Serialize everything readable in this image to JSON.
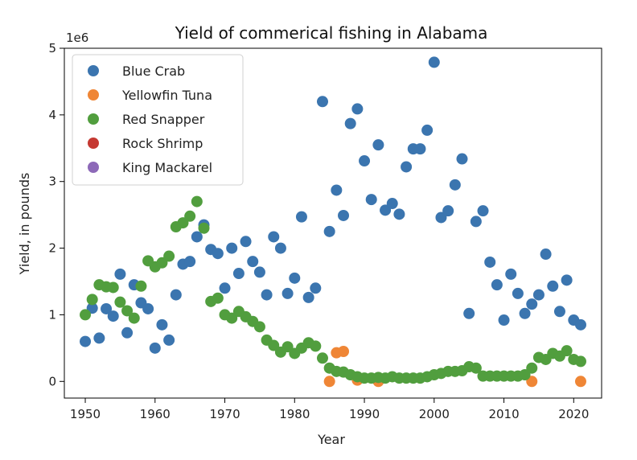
{
  "chart_data": {
    "type": "scatter",
    "title": "Yield of commerical fishing in Alabama",
    "xlabel": "Year",
    "ylabel": "Yield, in pounds",
    "y_offset_label": "1e6",
    "xlim": [
      1947,
      2024
    ],
    "ylim": [
      -0.25,
      5.0
    ],
    "x_ticks": [
      1950,
      1960,
      1970,
      1980,
      1990,
      2000,
      2010,
      2020
    ],
    "y_ticks": [
      0,
      1,
      2,
      3,
      4,
      5
    ],
    "grid": false,
    "legend_placement": "top-left",
    "series": [
      {
        "name": "Blue Crab",
        "color": "#3b75af",
        "points": [
          [
            1950,
            0.6
          ],
          [
            1951,
            1.1
          ],
          [
            1952,
            0.65
          ],
          [
            1953,
            1.09
          ],
          [
            1954,
            0.98
          ],
          [
            1955,
            1.61
          ],
          [
            1956,
            0.73
          ],
          [
            1957,
            1.45
          ],
          [
            1958,
            1.18
          ],
          [
            1959,
            1.09
          ],
          [
            1960,
            0.5
          ],
          [
            1961,
            0.85
          ],
          [
            1962,
            0.62
          ],
          [
            1963,
            1.3
          ],
          [
            1964,
            1.76
          ],
          [
            1965,
            1.8
          ],
          [
            1966,
            2.17
          ],
          [
            1967,
            2.35
          ],
          [
            1968,
            1.98
          ],
          [
            1969,
            1.92
          ],
          [
            1970,
            1.4
          ],
          [
            1971,
            2.0
          ],
          [
            1972,
            1.62
          ],
          [
            1973,
            2.1
          ],
          [
            1974,
            1.8
          ],
          [
            1975,
            1.64
          ],
          [
            1976,
            1.3
          ],
          [
            1977,
            2.17
          ],
          [
            1978,
            2.0
          ],
          [
            1979,
            1.32
          ],
          [
            1980,
            1.55
          ],
          [
            1981,
            2.47
          ],
          [
            1982,
            1.26
          ],
          [
            1983,
            1.4
          ],
          [
            1984,
            4.2
          ],
          [
            1985,
            2.25
          ],
          [
            1986,
            2.87
          ],
          [
            1987,
            2.49
          ],
          [
            1988,
            3.87
          ],
          [
            1989,
            4.09
          ],
          [
            1990,
            3.31
          ],
          [
            1991,
            2.73
          ],
          [
            1992,
            3.55
          ],
          [
            1993,
            2.57
          ],
          [
            1994,
            2.67
          ],
          [
            1995,
            2.51
          ],
          [
            1996,
            3.22
          ],
          [
            1997,
            3.49
          ],
          [
            1998,
            3.49
          ],
          [
            1999,
            3.77
          ],
          [
            2000,
            4.79
          ],
          [
            2001,
            2.46
          ],
          [
            2002,
            2.56
          ],
          [
            2003,
            2.95
          ],
          [
            2004,
            3.34
          ],
          [
            2005,
            1.02
          ],
          [
            2006,
            2.4
          ],
          [
            2007,
            2.56
          ],
          [
            2008,
            1.79
          ],
          [
            2009,
            1.45
          ],
          [
            2010,
            0.92
          ],
          [
            2011,
            1.61
          ],
          [
            2012,
            1.32
          ],
          [
            2013,
            1.02
          ],
          [
            2014,
            1.16
          ],
          [
            2015,
            1.3
          ],
          [
            2016,
            1.91
          ],
          [
            2017,
            1.43
          ],
          [
            2018,
            1.05
          ],
          [
            2019,
            1.52
          ],
          [
            2020,
            0.92
          ],
          [
            2021,
            0.85
          ]
        ]
      },
      {
        "name": "Yellowfin Tuna",
        "color": "#ef8636",
        "points": [
          [
            1985,
            0.0
          ],
          [
            1986,
            0.43
          ],
          [
            1987,
            0.45
          ],
          [
            1989,
            0.02
          ],
          [
            1992,
            0.0
          ],
          [
            2014,
            0.0
          ],
          [
            2021,
            0.0
          ]
        ]
      },
      {
        "name": "Red Snapper",
        "color": "#519e3e",
        "points": [
          [
            1950,
            1.0
          ],
          [
            1951,
            1.23
          ],
          [
            1952,
            1.45
          ],
          [
            1953,
            1.42
          ],
          [
            1954,
            1.41
          ],
          [
            1955,
            1.19
          ],
          [
            1956,
            1.06
          ],
          [
            1957,
            0.95
          ],
          [
            1958,
            1.43
          ],
          [
            1959,
            1.81
          ],
          [
            1960,
            1.72
          ],
          [
            1961,
            1.78
          ],
          [
            1962,
            1.88
          ],
          [
            1963,
            2.32
          ],
          [
            1964,
            2.38
          ],
          [
            1965,
            2.48
          ],
          [
            1966,
            2.7
          ],
          [
            1967,
            2.3
          ],
          [
            1968,
            1.2
          ],
          [
            1969,
            1.25
          ],
          [
            1970,
            1.0
          ],
          [
            1971,
            0.95
          ],
          [
            1972,
            1.05
          ],
          [
            1973,
            0.97
          ],
          [
            1974,
            0.9
          ],
          [
            1975,
            0.82
          ],
          [
            1976,
            0.62
          ],
          [
            1977,
            0.54
          ],
          [
            1978,
            0.44
          ],
          [
            1979,
            0.52
          ],
          [
            1980,
            0.42
          ],
          [
            1981,
            0.5
          ],
          [
            1982,
            0.58
          ],
          [
            1983,
            0.53
          ],
          [
            1984,
            0.35
          ],
          [
            1985,
            0.2
          ],
          [
            1986,
            0.15
          ],
          [
            1987,
            0.14
          ],
          [
            1988,
            0.1
          ],
          [
            1989,
            0.07
          ],
          [
            1990,
            0.05
          ],
          [
            1991,
            0.05
          ],
          [
            1992,
            0.06
          ],
          [
            1993,
            0.05
          ],
          [
            1994,
            0.07
          ],
          [
            1995,
            0.05
          ],
          [
            1996,
            0.05
          ],
          [
            1997,
            0.05
          ],
          [
            1998,
            0.05
          ],
          [
            1999,
            0.07
          ],
          [
            2000,
            0.1
          ],
          [
            2001,
            0.12
          ],
          [
            2002,
            0.15
          ],
          [
            2003,
            0.15
          ],
          [
            2004,
            0.16
          ],
          [
            2005,
            0.22
          ],
          [
            2006,
            0.2
          ],
          [
            2007,
            0.08
          ],
          [
            2008,
            0.08
          ],
          [
            2009,
            0.08
          ],
          [
            2010,
            0.08
          ],
          [
            2011,
            0.08
          ],
          [
            2012,
            0.08
          ],
          [
            2013,
            0.1
          ],
          [
            2014,
            0.2
          ],
          [
            2015,
            0.36
          ],
          [
            2016,
            0.33
          ],
          [
            2017,
            0.42
          ],
          [
            2018,
            0.38
          ],
          [
            2019,
            0.46
          ],
          [
            2020,
            0.33
          ],
          [
            2021,
            0.3
          ]
        ]
      },
      {
        "name": "Rock Shrimp",
        "color": "#c53932",
        "points": []
      },
      {
        "name": "King Mackarel",
        "color": "#8d69b8",
        "points": []
      }
    ]
  }
}
